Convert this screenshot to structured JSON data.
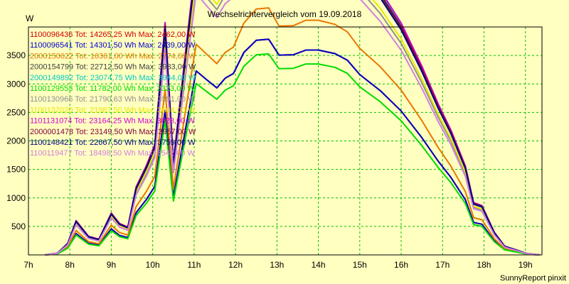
{
  "chart_data": {
    "type": "line",
    "title": "Wechselrichtervergleich vom 19.09.2018",
    "ylabel": "W",
    "footer": "SunnyReport pinxit",
    "xlim": [
      7,
      19.4
    ],
    "ylim": [
      0,
      4000
    ],
    "xticks": [
      {
        "v": 7,
        "label": "7h"
      },
      {
        "v": 8,
        "label": "8h"
      },
      {
        "v": 9,
        "label": "9h"
      },
      {
        "v": 10,
        "label": "10h"
      },
      {
        "v": 11,
        "label": "11h"
      },
      {
        "v": 12,
        "label": "12h"
      },
      {
        "v": 13,
        "label": "13h"
      },
      {
        "v": 14,
        "label": "14h"
      },
      {
        "v": 15,
        "label": "15h"
      },
      {
        "v": 16,
        "label": "16h"
      },
      {
        "v": 17,
        "label": "17h"
      },
      {
        "v": 18,
        "label": "18h"
      },
      {
        "v": 19,
        "label": "19h"
      }
    ],
    "yticks": [
      {
        "v": 500,
        "label": "500"
      },
      {
        "v": 1000,
        "label": "1000"
      },
      {
        "v": 1500,
        "label": "1500"
      },
      {
        "v": 2000,
        "label": "2000"
      },
      {
        "v": 2500,
        "label": "2500"
      },
      {
        "v": 3000,
        "label": "3000"
      },
      {
        "v": 3500,
        "label": "3500"
      }
    ],
    "grid": true,
    "legend_placement": "top-left",
    "x": [
      7.4,
      7.7,
      7.95,
      8.15,
      8.45,
      8.7,
      9.0,
      9.2,
      9.4,
      9.6,
      9.85,
      10.05,
      10.3,
      10.5,
      10.8,
      11.05,
      11.3,
      11.55,
      11.75,
      11.95,
      12.2,
      12.5,
      12.8,
      13.05,
      13.4,
      13.7,
      14.0,
      14.4,
      14.7,
      15.0,
      15.5,
      16.0,
      16.5,
      16.9,
      17.2,
      17.55,
      17.75,
      17.95,
      18.25,
      18.5,
      18.8,
      19.05,
      19.35
    ],
    "series": [
      {
        "name": "1100096436 Tot: 14265,25 Wh Max: 2462,00 W",
        "color": "#d00000",
        "scale": 0.633
      },
      {
        "name": "1100096541 Tot: 14301,50 Wh Max: 2439,00 W",
        "color": "#0000c8",
        "scale": 0.633
      },
      {
        "name": "2000150622 Tot: 16361,00 Wh Max: 2774,00 W",
        "color": "#e87800",
        "scale": 0.725
      },
      {
        "name": "2000154799 Tot: 22712,50 Wh Max: 3933,00 W",
        "color": "#404040",
        "scale": 1.0
      },
      {
        "name": "2000149892 Tot: 23074,75 Wh Max: 3944,00 W",
        "color": "#00c8c8",
        "scale": 1.01
      },
      {
        "name": "1100129553 Tot: 11782,00 Wh Max: 2323,00 W",
        "color": "#00dc00",
        "scale": 0.59
      },
      {
        "name": "1100130966 Tot: 21790,63 Wh Max: 3591,00 W",
        "color": "#909090",
        "scale": 0.93
      },
      {
        "name": "1100132020 Tot: 21987,50 Wh Max: 3604,00 W",
        "color": "#e8e800",
        "scale": 0.95
      },
      {
        "name": "1101131074 Tot: 23164,25 Wh Max: 3828,00 W",
        "color": "#d000d0",
        "scale": 1.02
      },
      {
        "name": "2000001478 Tot: 23149,50 Wh Max: 3957,00 W",
        "color": "#800040",
        "scale": 1.005
      },
      {
        "name": "1100148421 Tot: 22667,50 Wh Max: 3759,00 W",
        "color": "#000080",
        "scale": 0.99
      },
      {
        "name": "1100119477 Tot: 18498,50 Wh Max: 3542,00 W",
        "color": "#d080e0",
        "scale": 0.9
      }
    ],
    "base_profile": [
      0,
      30,
      200,
      590,
      320,
      270,
      720,
      540,
      480,
      1170,
      1540,
      1900,
      4000,
      1600,
      3540,
      5100,
      4860,
      4630,
      4900,
      5030,
      5610,
      5950,
      5980,
      5540,
      5550,
      5680,
      5680,
      5580,
      5400,
      5000,
      4550,
      3990,
      3250,
      2590,
      2150,
      1530,
      900,
      850,
      390,
      150,
      80,
      20,
      0
    ]
  }
}
